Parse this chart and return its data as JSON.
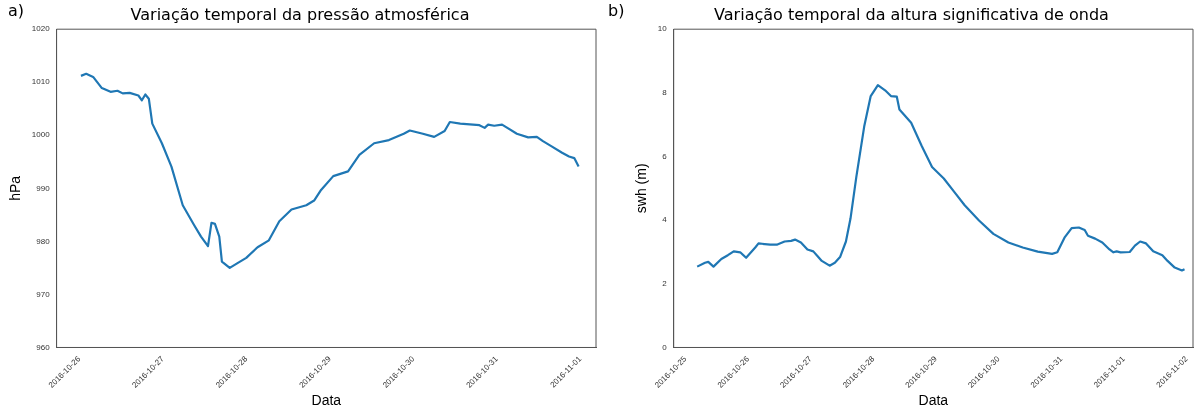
{
  "chart_data": [
    {
      "type": "line",
      "title": "Variação temporal da pressão atmosférica",
      "xlabel": "Data",
      "ylabel": "hPa",
      "annotations": [
        "a)"
      ],
      "color": "#1f77b4",
      "grid": false,
      "legend": false,
      "x": [
        "2016-10-26T00:30",
        "2016-10-26T02:00",
        "2016-10-26T04:00",
        "2016-10-26T06:30",
        "2016-10-26T09:00",
        "2016-10-26T11:00",
        "2016-10-26T12:30",
        "2016-10-26T14:30",
        "2016-10-26T17:00",
        "2016-10-26T18:00",
        "2016-10-26T19:00",
        "2016-10-26T20:00",
        "2016-10-26T21:00",
        "2016-10-26T23:45",
        "2016-10-27T02:30",
        "2016-10-27T05:45",
        "2016-10-27T09:00",
        "2016-10-27T11:00",
        "2016-10-27T13:00",
        "2016-10-27T14:00",
        "2016-10-27T15:00",
        "2016-10-27T16:15",
        "2016-10-27T17:00",
        "2016-10-27T19:15",
        "2016-10-27T21:15",
        "2016-10-28T00:00",
        "2016-10-28T03:15",
        "2016-10-28T06:30",
        "2016-10-28T09:30",
        "2016-10-28T13:00",
        "2016-10-28T17:15",
        "2016-10-28T19:30",
        "2016-10-28T21:30",
        "2016-10-29T01:00",
        "2016-10-29T05:15",
        "2016-10-29T08:30",
        "2016-10-29T12:45",
        "2016-10-29T17:00",
        "2016-10-29T21:15",
        "2016-10-29T23:00",
        "2016-10-30T02:45",
        "2016-10-30T06:00",
        "2016-10-30T09:00",
        "2016-10-30T10:30",
        "2016-10-30T13:30",
        "2016-10-30T19:00",
        "2016-10-30T20:30",
        "2016-10-30T21:30",
        "2016-10-30T23:15",
        "2016-10-31T01:30",
        "2016-10-31T05:45",
        "2016-10-31T09:00",
        "2016-10-31T11:30",
        "2016-10-31T13:15",
        "2016-10-31T15:45",
        "2016-10-31T18:45",
        "2016-10-31T20:45",
        "2016-10-31T22:15",
        "2016-10-31T23:30"
      ],
      "values": [
        1011.2,
        1011.6,
        1011.0,
        1008.9,
        1008.2,
        1008.4,
        1007.9,
        1008.0,
        1007.5,
        1006.6,
        1007.7,
        1006.9,
        1002.2,
        998.5,
        994.1,
        986.8,
        983.1,
        980.9,
        979.1,
        983.5,
        983.3,
        980.9,
        976.2,
        975.0,
        975.8,
        976.9,
        978.9,
        980.2,
        983.8,
        986.0,
        986.8,
        987.7,
        989.7,
        992.3,
        993.2,
        996.3,
        998.5,
        999.1,
        1000.3,
        1000.9,
        1000.3,
        999.7,
        1000.8,
        1002.5,
        1002.2,
        1001.9,
        1001.4,
        1002.0,
        1001.8,
        1002.0,
        1000.3,
        999.6,
        999.7,
        998.9,
        997.9,
        996.7,
        996.0,
        995.7,
        994.1
      ],
      "xlim": [
        "2016-10-25T17:30",
        "2016-11-01T04:30"
      ],
      "xticks": [
        "2016-10-26",
        "2016-10-27",
        "2016-10-28",
        "2016-10-29",
        "2016-10-30",
        "2016-10-31",
        "2016-11-01"
      ],
      "ylim": [
        960,
        1020
      ],
      "yticks": [
        960,
        970,
        980,
        990,
        1000,
        1010,
        1020
      ]
    },
    {
      "type": "line",
      "title": "Variação temporal da altura significativa de onda",
      "xlabel": "Data",
      "ylabel": "swh (m)",
      "annotations": [
        "b)"
      ],
      "color": "#1f77b4",
      "grid": false,
      "legend": false,
      "x": [
        "2016-10-25T04:30",
        "2016-10-25T07:30",
        "2016-10-25T08:45",
        "2016-10-25T10:45",
        "2016-10-25T13:45",
        "2016-10-25T16:15",
        "2016-10-25T18:30",
        "2016-10-25T21:00",
        "2016-10-25T23:15",
        "2016-10-26T02:45",
        "2016-10-26T04:00",
        "2016-10-26T08:30",
        "2016-10-26T11:00",
        "2016-10-26T14:00",
        "2016-10-26T16:30",
        "2016-10-26T18:00",
        "2016-10-26T20:15",
        "2016-10-26T22:45",
        "2016-10-27T01:00",
        "2016-10-27T04:15",
        "2016-10-27T07:15",
        "2016-10-27T09:15",
        "2016-10-27T11:15",
        "2016-10-27T13:30",
        "2016-10-27T15:15",
        "2016-10-27T17:30",
        "2016-10-27T20:30",
        "2016-10-27T23:00",
        "2016-10-28T01:45",
        "2016-10-28T04:30",
        "2016-10-28T06:45",
        "2016-10-28T09:00",
        "2016-10-28T10:00",
        "2016-10-28T14:30",
        "2016-10-28T18:30",
        "2016-10-28T22:30",
        "2016-10-29T03:00",
        "2016-10-29T07:00",
        "2016-10-29T11:00",
        "2016-10-29T16:30",
        "2016-10-29T22:00",
        "2016-10-30T03:45",
        "2016-10-30T09:15",
        "2016-10-30T15:00",
        "2016-10-30T20:30",
        "2016-10-30T22:30",
        "2016-10-31T01:15",
        "2016-10-31T04:00",
        "2016-10-31T06:45",
        "2016-10-31T09:00",
        "2016-10-31T10:15",
        "2016-10-31T13:00",
        "2016-10-31T15:45",
        "2016-10-31T18:30",
        "2016-10-31T20:00",
        "2016-10-31T21:15",
        "2016-10-31T22:45",
        "2016-11-01T02:15",
        "2016-11-01T04:15",
        "2016-11-01T06:15",
        "2016-11-01T08:30",
        "2016-11-01T11:15",
        "2016-11-01T14:45",
        "2016-11-01T16:45",
        "2016-11-01T19:30",
        "2016-11-01T22:15",
        "2016-11-01T23:15"
      ],
      "values": [
        2.54,
        2.66,
        2.69,
        2.54,
        2.78,
        2.9,
        3.02,
        2.99,
        2.82,
        3.14,
        3.27,
        3.23,
        3.23,
        3.33,
        3.35,
        3.39,
        3.3,
        3.08,
        3.02,
        2.72,
        2.57,
        2.66,
        2.84,
        3.33,
        4.05,
        5.37,
        6.94,
        7.9,
        8.24,
        8.08,
        7.9,
        7.88,
        7.48,
        7.06,
        6.34,
        5.67,
        5.31,
        4.89,
        4.47,
        3.99,
        3.57,
        3.3,
        3.14,
        3.01,
        2.94,
        2.99,
        3.45,
        3.75,
        3.77,
        3.69,
        3.51,
        3.42,
        3.3,
        3.08,
        2.99,
        3.02,
        2.99,
        3.0,
        3.2,
        3.33,
        3.27,
        3.02,
        2.9,
        2.72,
        2.51,
        2.42,
        2.46
      ],
      "xlim": [
        "2016-10-24T19:30",
        "2016-11-02T02:30"
      ],
      "xticks": [
        "2016-10-25",
        "2016-10-26",
        "2016-10-27",
        "2016-10-28",
        "2016-10-29",
        "2016-10-30",
        "2016-10-31",
        "2016-11-01",
        "2016-11-02"
      ],
      "ylim": [
        0,
        10
      ],
      "yticks": [
        0,
        2,
        4,
        6,
        8,
        10
      ]
    }
  ]
}
